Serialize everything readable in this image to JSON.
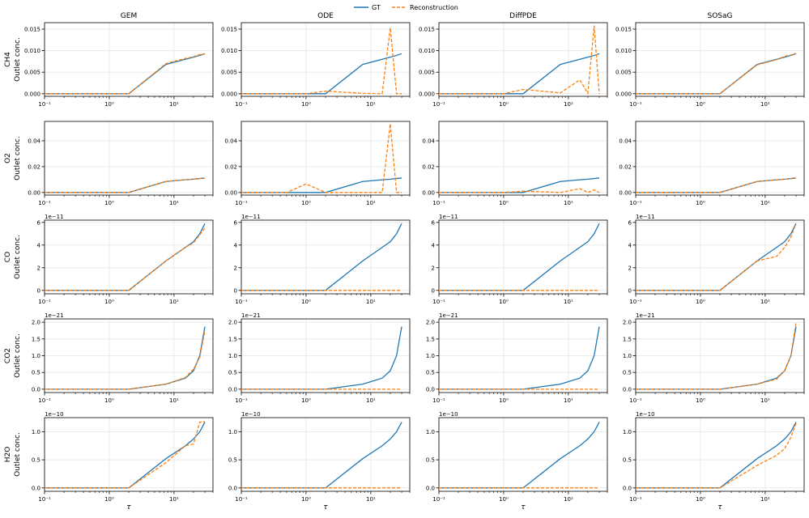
{
  "figure": {
    "legend": {
      "placement": "top-center",
      "entries": [
        {
          "name": "GT",
          "color": "#1f77b4",
          "dash": "solid"
        },
        {
          "name": "Reconstruction",
          "color": "#ff7f0e",
          "dash": "dashed"
        }
      ]
    },
    "x_label": "τ",
    "x_scale": "log",
    "x_tick_labels": [
      "10⁻¹",
      "10⁰",
      "10¹"
    ],
    "grid": true
  },
  "chart_data": {
    "type": "line",
    "x_scale": "log",
    "xlim": [
      0.1,
      40
    ],
    "x": [
      0.1,
      0.5,
      1,
      2,
      7.5,
      15,
      20,
      25,
      30
    ],
    "column_titles": [
      "GEM",
      "ODE",
      "DiffPDE",
      "SOSaG"
    ],
    "rows": [
      {
        "species": "CH4",
        "ylabel": "Outlet conc.",
        "exponent": "",
        "ylim": [
          -0.0006,
          0.0165
        ],
        "yticks": [
          0,
          0.005,
          0.01,
          0.015
        ],
        "ytick_labels": [
          "0.000",
          "0.005",
          "0.010",
          "0.015"
        ],
        "gt": [
          0,
          0,
          0,
          0,
          0.0068,
          0.008,
          0.0085,
          0.0089,
          0.0093
        ],
        "reconstruction": [
          [
            0,
            0,
            0,
            0,
            0.007,
            0.0082,
            0.0086,
            0.0091,
            0.0092
          ],
          [
            0,
            0,
            0,
            0.0006,
            0.0001,
            0,
            0.0153,
            0,
            0
          ],
          [
            0,
            0,
            0,
            0.001,
            0.0002,
            0.0032,
            0.0001,
            0.0158,
            0
          ],
          [
            0,
            0,
            0,
            0,
            0.0067,
            0.0079,
            0.0087,
            0.009,
            0.0094
          ]
        ]
      },
      {
        "species": "O2",
        "ylabel": "Outlet conc.",
        "exponent": "",
        "ylim": [
          -0.002,
          0.055
        ],
        "yticks": [
          0,
          0.02,
          0.04
        ],
        "ytick_labels": [
          "0.00",
          "0.02",
          "0.04"
        ],
        "gt": [
          0,
          0,
          0,
          0,
          0.0085,
          0.0098,
          0.0103,
          0.0108,
          0.0112
        ],
        "reconstruction": [
          [
            0,
            0,
            0,
            0,
            0.0086,
            0.0099,
            0.0104,
            0.0108,
            0.0111
          ],
          [
            0,
            0,
            0.0066,
            0,
            0,
            0,
            0.053,
            0,
            0
          ],
          [
            0,
            0,
            0,
            0.001,
            0,
            0.003,
            0,
            0.002,
            0
          ],
          [
            0,
            0,
            0,
            0,
            0.0085,
            0.0097,
            0.0103,
            0.0107,
            0.0111
          ]
        ]
      },
      {
        "species": "CO",
        "ylabel": "Outlet conc.",
        "exponent": "1e−11",
        "ylim": [
          -0.3,
          6.2
        ],
        "yticks": [
          0,
          2,
          4,
          6
        ],
        "ytick_labels": [
          "0",
          "2",
          "4",
          "6"
        ],
        "gt": [
          0,
          0,
          0,
          0,
          2.6,
          3.8,
          4.3,
          5.0,
          5.9
        ],
        "reconstruction": [
          [
            0,
            0,
            0,
            0,
            2.6,
            3.8,
            4.2,
            4.9,
            5.5
          ],
          [
            0,
            0,
            0,
            0,
            0,
            0,
            0,
            0,
            0
          ],
          [
            0,
            0,
            0,
            0,
            0,
            0,
            0,
            0,
            0
          ],
          [
            0,
            0,
            0,
            0,
            2.6,
            3.0,
            3.8,
            4.7,
            5.9
          ]
        ]
      },
      {
        "species": "CO2",
        "ylabel": "Outlet conc.",
        "exponent": "1e−21",
        "ylim": [
          -0.1,
          2.1
        ],
        "yticks": [
          0,
          0.5,
          1.0,
          1.5,
          2.0
        ],
        "ytick_labels": [
          "0.0",
          "0.5",
          "1.0",
          "1.5",
          "2.0"
        ],
        "gt": [
          0,
          0,
          0,
          0,
          0.15,
          0.33,
          0.55,
          1.0,
          1.87
        ],
        "reconstruction": [
          [
            0,
            0,
            0,
            0,
            0.15,
            0.35,
            0.6,
            0.95,
            1.75
          ],
          [
            0,
            0,
            0,
            0,
            0,
            0,
            0,
            0,
            0
          ],
          [
            0,
            0,
            0,
            0,
            0,
            0,
            0,
            0,
            0
          ],
          [
            0,
            0,
            0,
            0,
            0.15,
            0.3,
            0.55,
            1.0,
            2.0
          ]
        ]
      },
      {
        "species": "H2O",
        "ylabel": "Outlet conc.",
        "exponent": "1e−10",
        "ylim": [
          -0.06,
          1.25
        ],
        "yticks": [
          0,
          0.5,
          1.0
        ],
        "ytick_labels": [
          "0.0",
          "0.5",
          "1.0"
        ],
        "gt": [
          0,
          0,
          0,
          0,
          0.52,
          0.75,
          0.87,
          1.0,
          1.17
        ],
        "reconstruction": [
          [
            0,
            0,
            0,
            0,
            0.45,
            0.75,
            0.78,
            1.17,
            1.18
          ],
          [
            0,
            0,
            0,
            0,
            0,
            0,
            0,
            0,
            0
          ],
          [
            0,
            0,
            0,
            0,
            0,
            0,
            0,
            0,
            0
          ],
          [
            0,
            0,
            0,
            0,
            0.4,
            0.58,
            0.7,
            0.9,
            1.15
          ]
        ]
      }
    ]
  }
}
